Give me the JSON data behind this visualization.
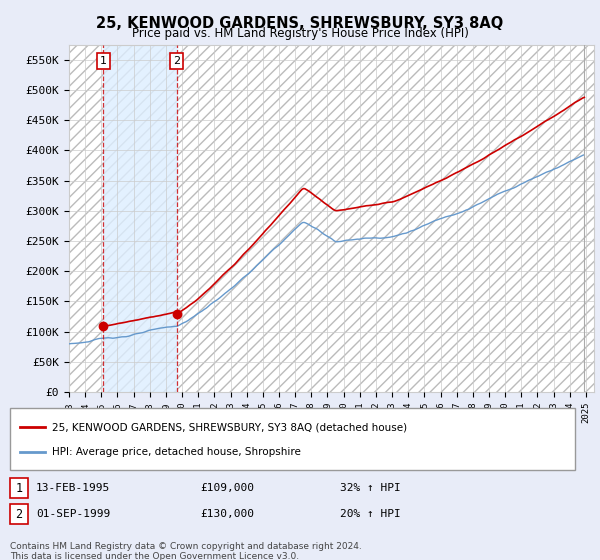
{
  "title": "25, KENWOOD GARDENS, SHREWSBURY, SY3 8AQ",
  "subtitle": "Price paid vs. HM Land Registry's House Price Index (HPI)",
  "ylim": [
    0,
    575000
  ],
  "yticks": [
    0,
    50000,
    100000,
    150000,
    200000,
    250000,
    300000,
    350000,
    400000,
    450000,
    500000,
    550000
  ],
  "ytick_labels": [
    "£0",
    "£50K",
    "£100K",
    "£150K",
    "£200K",
    "£250K",
    "£300K",
    "£350K",
    "£400K",
    "£450K",
    "£500K",
    "£550K"
  ],
  "xlim_start": 1993,
  "xlim_end": 2025.5,
  "sale1_date": 1995.12,
  "sale1_price": 109000,
  "sale2_date": 1999.67,
  "sale2_price": 130000,
  "sale1_date_str": "13-FEB-1995",
  "sale1_price_str": "£109,000",
  "sale1_hpi_str": "32% ↑ HPI",
  "sale2_date_str": "01-SEP-1999",
  "sale2_price_str": "£130,000",
  "sale2_hpi_str": "20% ↑ HPI",
  "line1_color": "#cc0000",
  "line2_color": "#6699cc",
  "shade_color": "#ddeeff",
  "legend1_label": "25, KENWOOD GARDENS, SHREWSBURY, SY3 8AQ (detached house)",
  "legend2_label": "HPI: Average price, detached house, Shropshire",
  "footer": "Contains HM Land Registry data © Crown copyright and database right 2024.\nThis data is licensed under the Open Government Licence v3.0.",
  "bg_color": "#e8ecf8",
  "plot_bg": "#ffffff",
  "grid_color": "#cccccc",
  "hatch_color": "#bbbbbb"
}
